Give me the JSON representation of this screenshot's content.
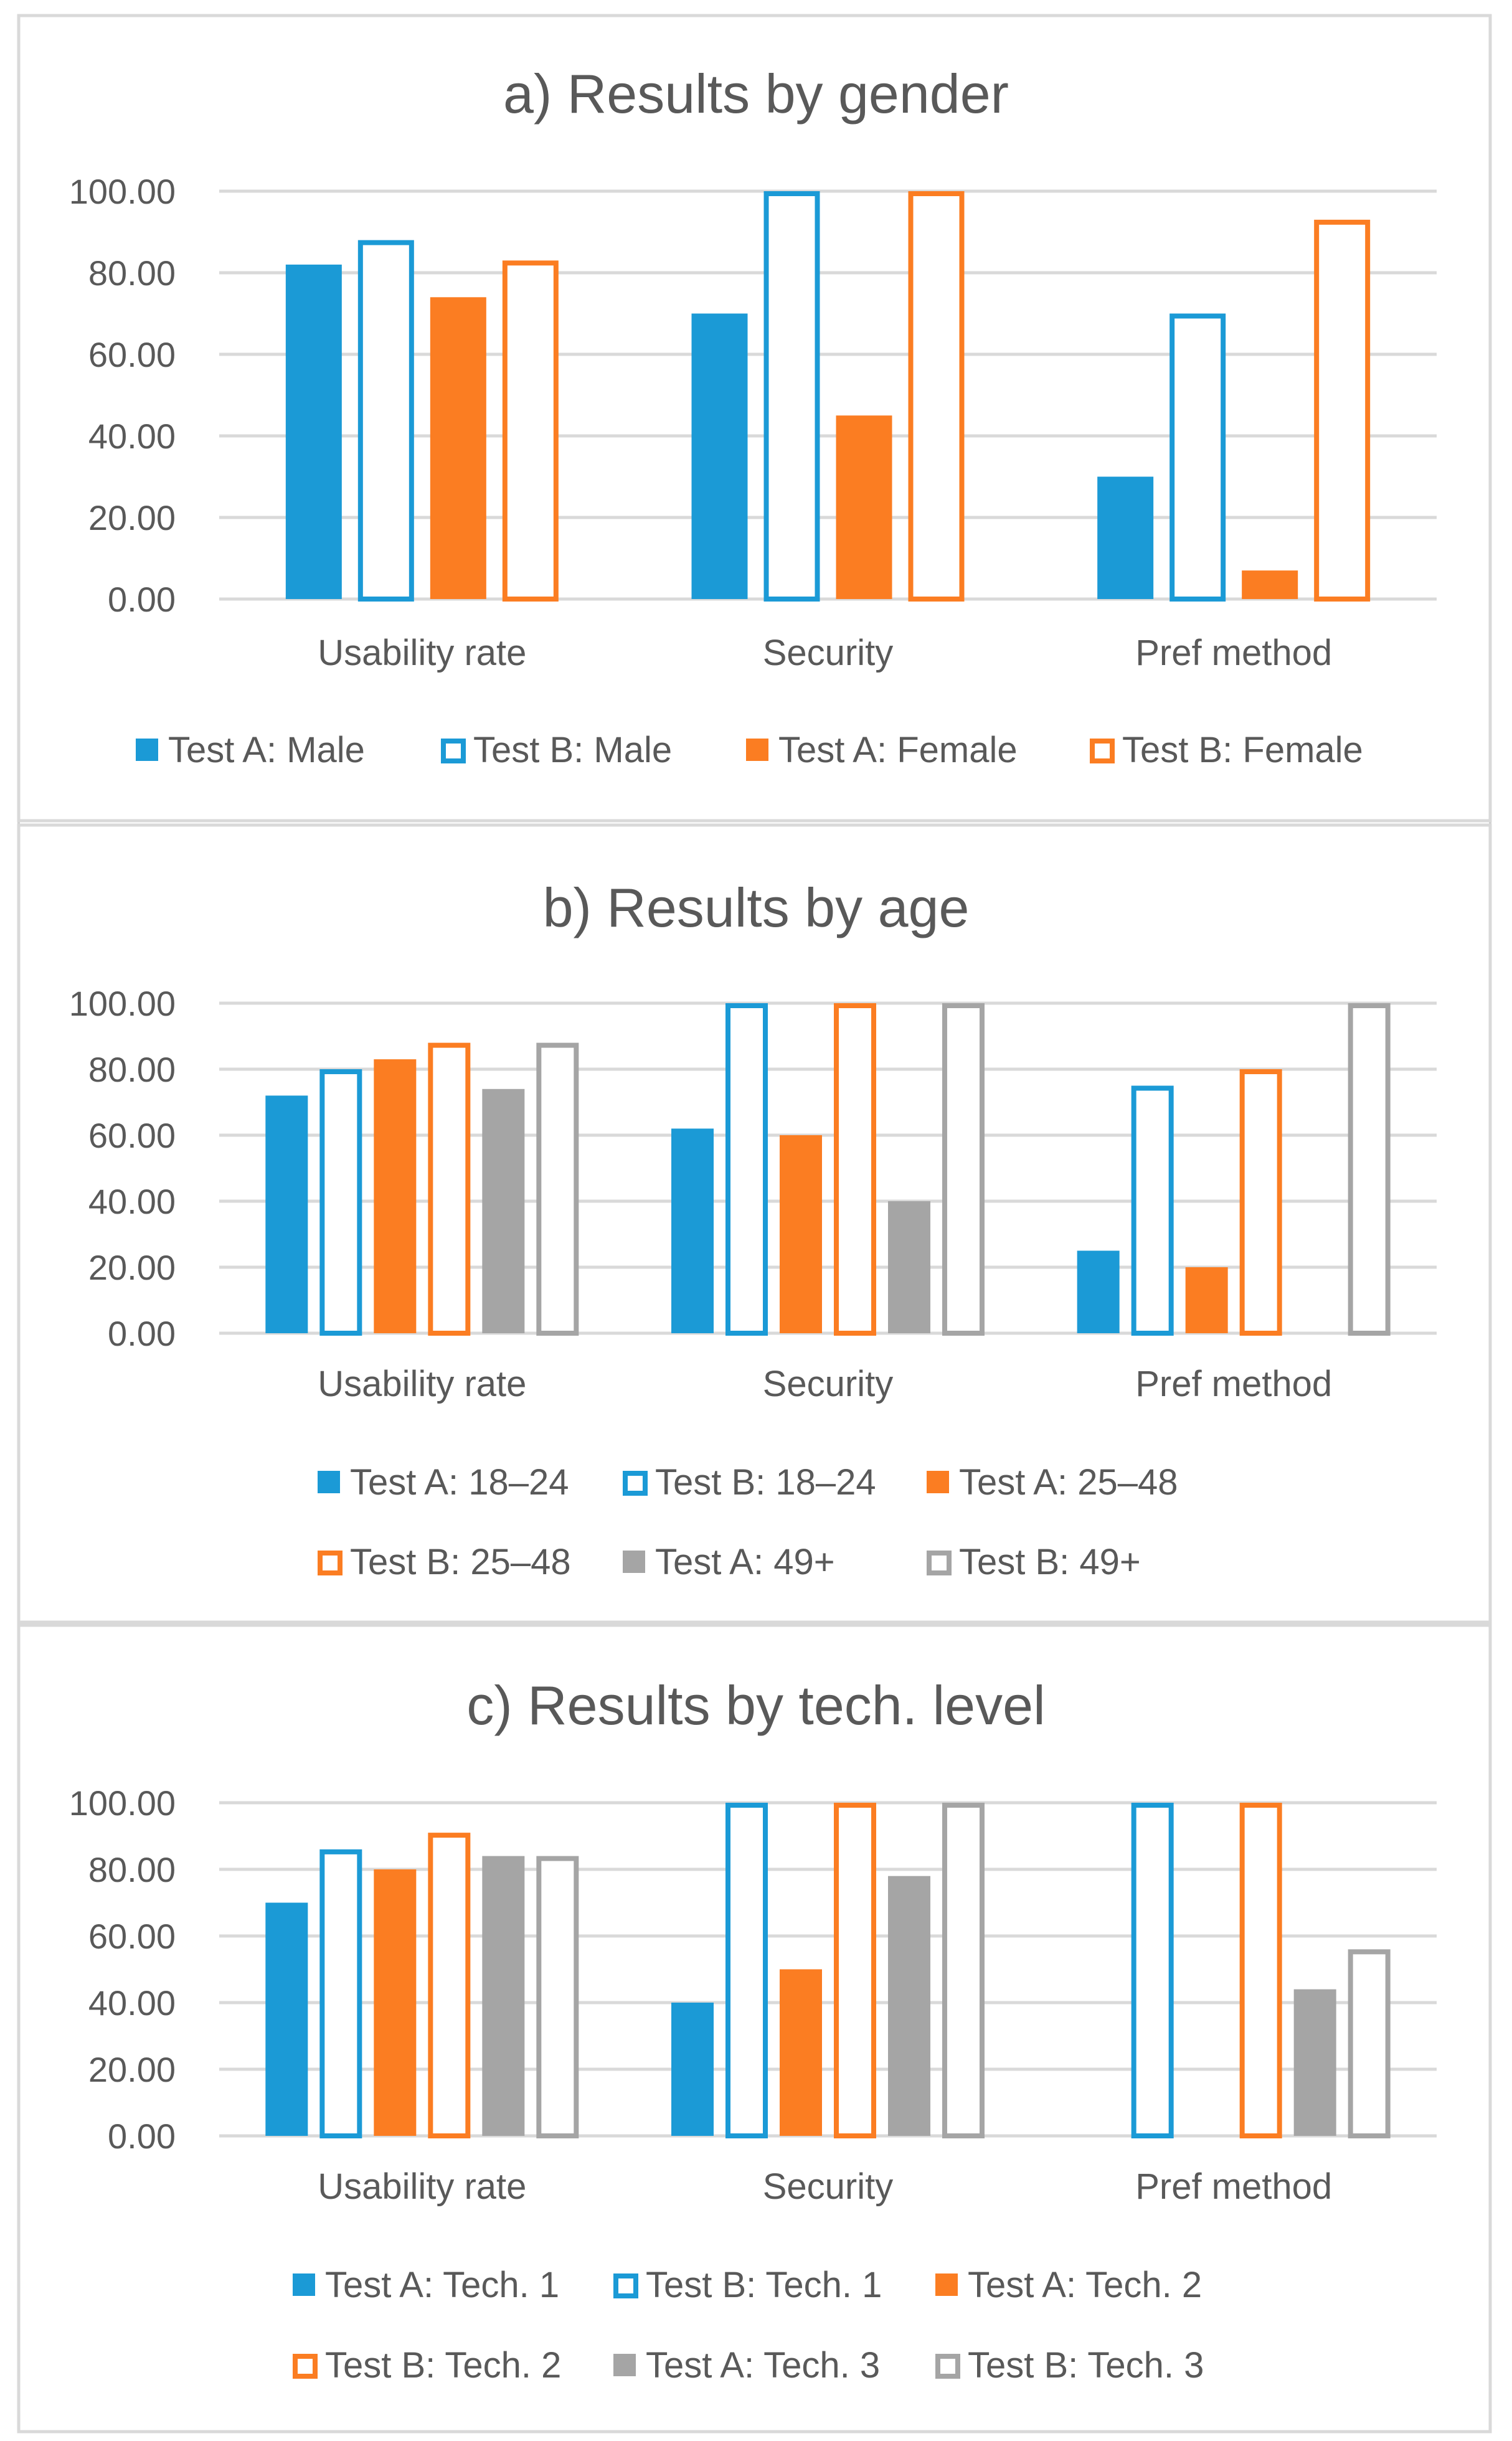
{
  "chart_data": [
    {
      "type": "bar",
      "title": "a) Results by gender",
      "xlabel": "",
      "ylabel": "",
      "ylim": [
        0,
        100
      ],
      "yticks": [
        "0.00",
        "20.00",
        "40.00",
        "60.00",
        "80.00",
        "100.00"
      ],
      "grid": true,
      "legend_position": "bottom",
      "categories": [
        "Usability rate",
        "Security",
        "Pref method"
      ],
      "series": [
        {
          "name": "Test A: Male",
          "style": "filled",
          "color": "#1b9ad6",
          "values": [
            82,
            70,
            30
          ]
        },
        {
          "name": "Test B: Male",
          "style": "hollow",
          "color": "#1b9ad6",
          "values": [
            88,
            100,
            70
          ]
        },
        {
          "name": "Test A: Female",
          "style": "filled",
          "color": "#fb7d22",
          "values": [
            74,
            45,
            7
          ]
        },
        {
          "name": "Test B: Female",
          "style": "hollow",
          "color": "#fb7d22",
          "values": [
            83,
            100,
            93
          ]
        }
      ]
    },
    {
      "type": "bar",
      "title": "b) Results by age",
      "xlabel": "",
      "ylabel": "",
      "ylim": [
        0,
        100
      ],
      "yticks": [
        "0.00",
        "20.00",
        "40.00",
        "60.00",
        "80.00",
        "100.00"
      ],
      "grid": true,
      "legend_position": "bottom",
      "categories": [
        "Usability rate",
        "Security",
        "Pref method"
      ],
      "series": [
        {
          "name": "Test A: 18–24",
          "style": "filled",
          "color": "#1b9ad6",
          "values": [
            72,
            62,
            25
          ]
        },
        {
          "name": "Test B: 18–24",
          "style": "hollow",
          "color": "#1b9ad6",
          "values": [
            80,
            100,
            75
          ]
        },
        {
          "name": "Test A: 25–48",
          "style": "filled",
          "color": "#fb7d22",
          "values": [
            83,
            60,
            20
          ]
        },
        {
          "name": "Test B: 25–48",
          "style": "hollow",
          "color": "#fb7d22",
          "values": [
            88,
            100,
            80
          ]
        },
        {
          "name": "Test A: 49+",
          "style": "filled",
          "color": "#a5a5a5",
          "values": [
            74,
            40,
            0
          ]
        },
        {
          "name": "Test B: 49+",
          "style": "hollow",
          "color": "#a5a5a5",
          "values": [
            88,
            100,
            100
          ]
        }
      ]
    },
    {
      "type": "bar",
      "title": "c) Results by tech. level",
      "xlabel": "",
      "ylabel": "",
      "ylim": [
        0,
        100
      ],
      "yticks": [
        "0.00",
        "20.00",
        "40.00",
        "60.00",
        "80.00",
        "100.00"
      ],
      "grid": true,
      "legend_position": "bottom",
      "categories": [
        "Usability rate",
        "Security",
        "Pref method"
      ],
      "series": [
        {
          "name": "Test A: Tech. 1",
          "style": "filled",
          "color": "#1b9ad6",
          "values": [
            70,
            40,
            0
          ]
        },
        {
          "name": "Test B: Tech. 1",
          "style": "hollow",
          "color": "#1b9ad6",
          "values": [
            86,
            100,
            100
          ]
        },
        {
          "name": "Test A: Tech. 2",
          "style": "filled",
          "color": "#fb7d22",
          "values": [
            80,
            50,
            0
          ]
        },
        {
          "name": "Test B: Tech. 2",
          "style": "hollow",
          "color": "#fb7d22",
          "values": [
            91,
            100,
            100
          ]
        },
        {
          "name": "Test A: Tech. 3",
          "style": "filled",
          "color": "#a5a5a5",
          "values": [
            84,
            78,
            44
          ]
        },
        {
          "name": "Test B: Tech. 3",
          "style": "hollow",
          "color": "#a5a5a5",
          "values": [
            84,
            100,
            56
          ]
        }
      ]
    }
  ]
}
